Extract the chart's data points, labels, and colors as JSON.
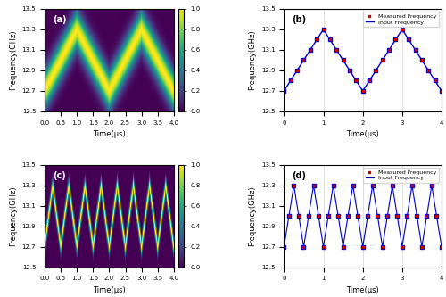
{
  "fig_width": 5.0,
  "fig_height": 3.33,
  "dpi": 100,
  "freq_min": 12.5,
  "freq_max": 13.5,
  "time_min": 0,
  "time_max": 4,
  "panel_labels": [
    "(a)",
    "(b)",
    "(c)",
    "(d)"
  ],
  "xlabel": "Time(μs)",
  "ylabel": "Frequency(GHz)",
  "yticks": [
    12.5,
    12.7,
    12.9,
    13.1,
    13.3,
    13.5
  ],
  "xticks_heatmap": [
    0,
    0.5,
    1,
    1.5,
    2,
    2.5,
    3,
    3.5,
    4
  ],
  "xticks_line": [
    0,
    1,
    2,
    3,
    4
  ],
  "line_color_input": "#0000cc",
  "dot_color_measured": "#cc0000",
  "legend_measured": "Measured Frequency",
  "legend_input": "Input Frequency",
  "cmap": "viridis",
  "slow_freq_min": 12.7,
  "slow_freq_max": 13.3,
  "fast_freq_min": 12.7,
  "fast_freq_max": 13.3,
  "slow_period": 2.0,
  "fast_period": 0.5,
  "sigma_slow": 0.13,
  "sigma_fast": 0.055,
  "background_color": "#ffffff"
}
